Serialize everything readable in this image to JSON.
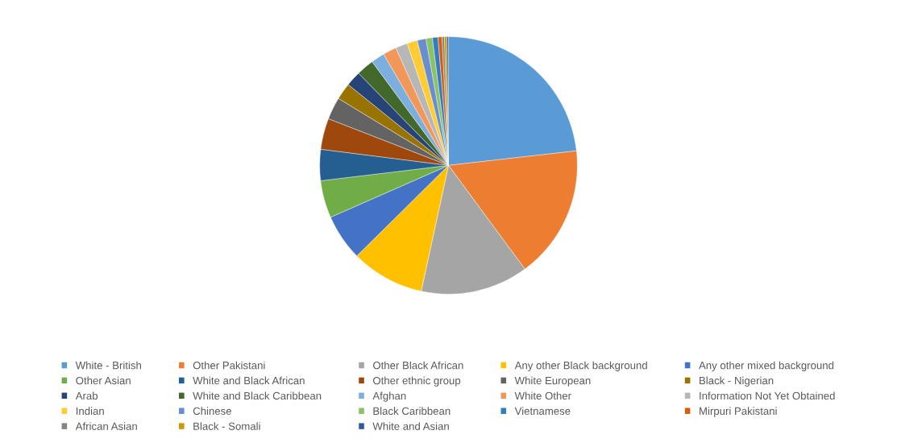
{
  "chart_data": {
    "type": "pie",
    "legend": "bottom",
    "categories": [
      "White - British",
      "Other Pakistani",
      "Other Black African",
      "Any other Black background",
      "Any other mixed background",
      "Other Asian",
      "White and Black African",
      "Other ethnic group",
      "White European",
      "Black - Nigerian",
      "Arab",
      "White and Black Caribbean",
      "Afghan",
      "White Other",
      "Information Not Yet Obtained",
      "Indian",
      "Chinese",
      "Black Caribbean",
      "Vietnamese",
      "Mirpuri Pakistani",
      "African Asian",
      "Black - Somali",
      "White and Asian"
    ],
    "values": [
      23.2,
      16.7,
      13.5,
      9.2,
      5.8,
      4.7,
      3.9,
      3.9,
      2.8,
      2.1,
      1.9,
      2.2,
      1.7,
      1.7,
      1.5,
      1.3,
      1.1,
      0.8,
      0.7,
      0.5,
      0.3,
      0.3,
      0.2
    ],
    "colors": [
      "#5b9bd5",
      "#ed7d31",
      "#a5a5a5",
      "#ffc000",
      "#4472c4",
      "#70ad47",
      "#255e91",
      "#9e480e",
      "#636363",
      "#997300",
      "#264478",
      "#43682b",
      "#7cafdd",
      "#f1975a",
      "#b7b7b7",
      "#ffcd33",
      "#698ed0",
      "#8cc168",
      "#327dc2",
      "#d26012",
      "#848484",
      "#cc9a00",
      "#335aa1"
    ]
  }
}
